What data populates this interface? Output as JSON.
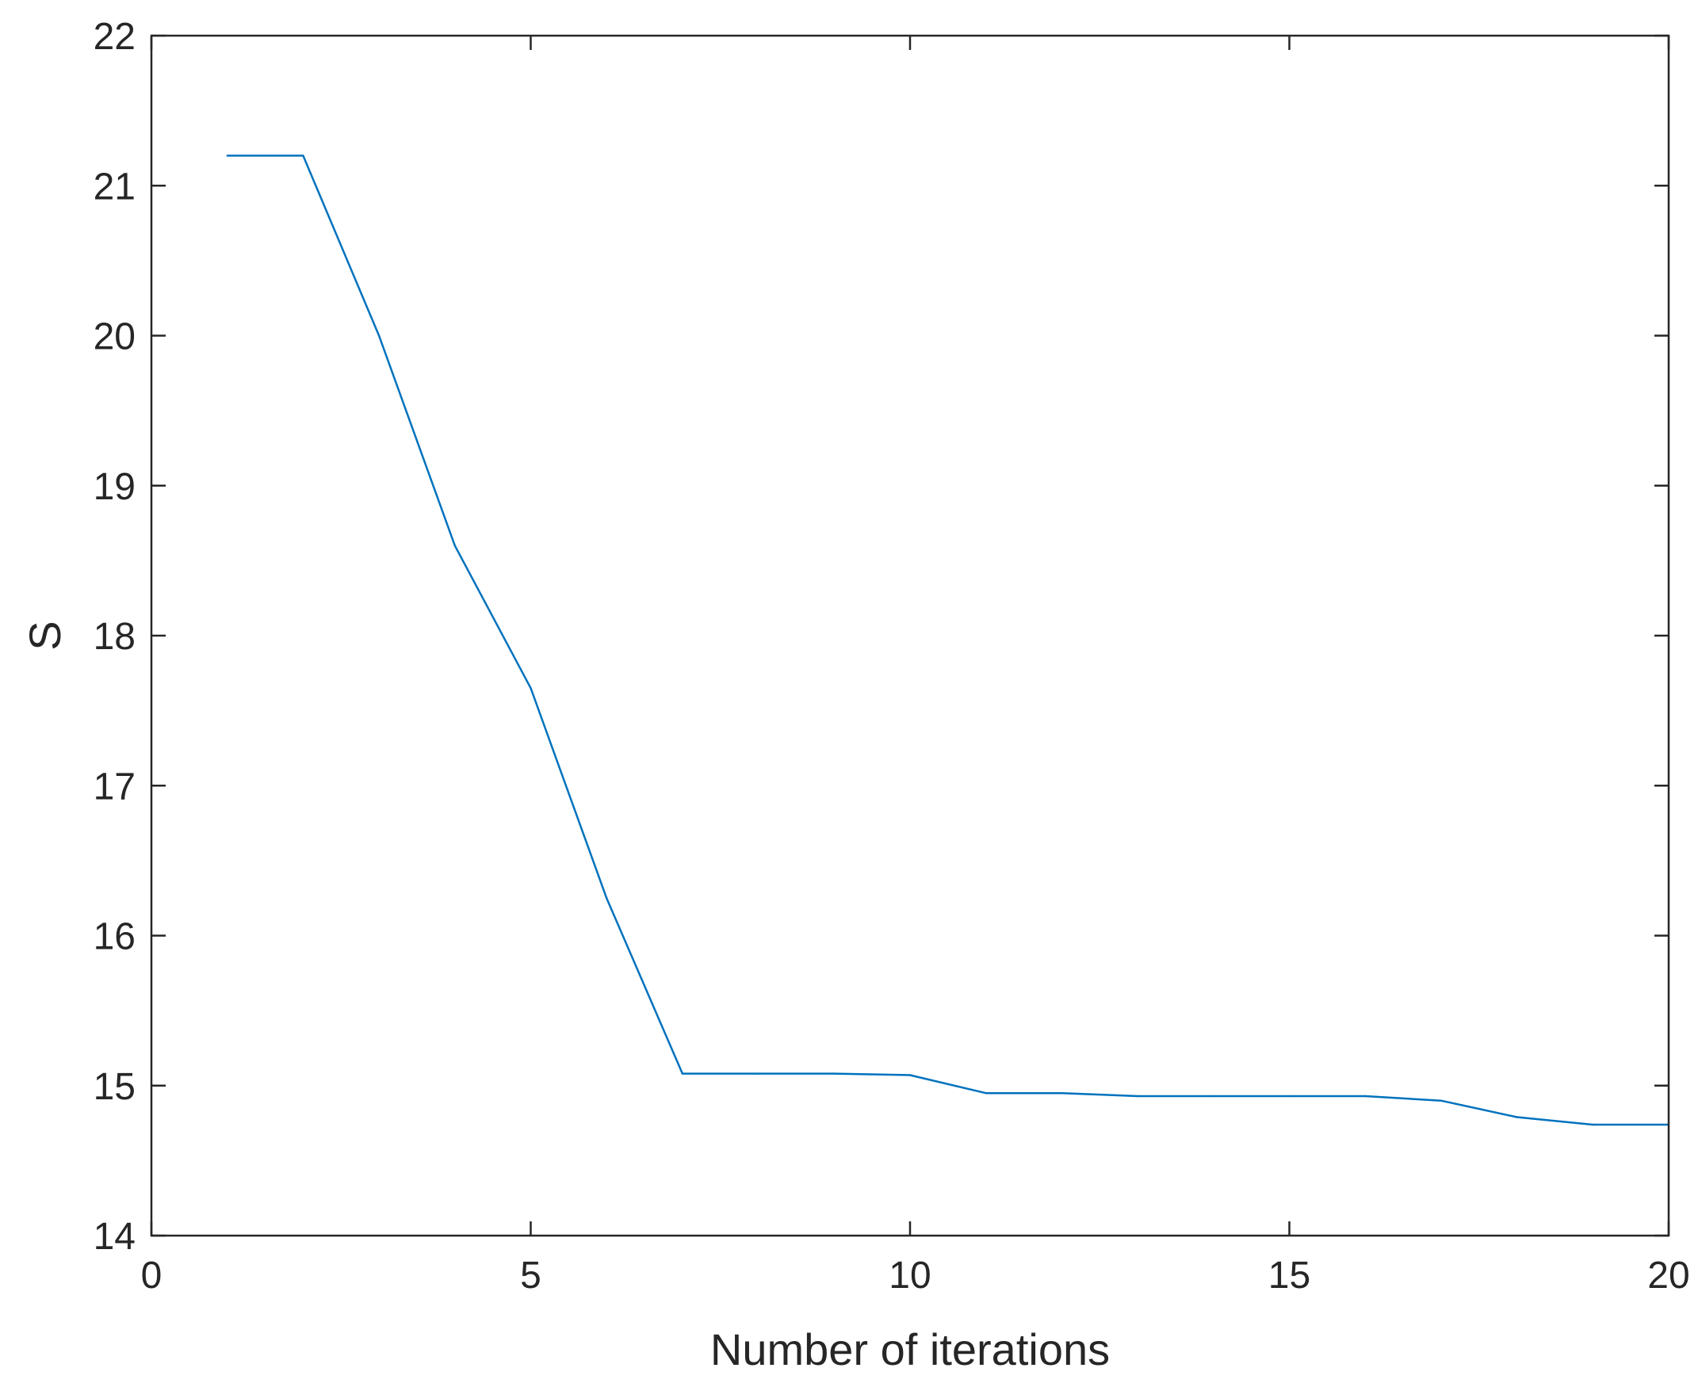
{
  "chart_data": {
    "type": "line",
    "xlabel": "Number of iterations",
    "ylabel": "S",
    "xlim": [
      0,
      20
    ],
    "ylim": [
      14,
      22
    ],
    "xticks": [
      0,
      5,
      10,
      15,
      20
    ],
    "yticks": [
      14,
      15,
      16,
      17,
      18,
      19,
      20,
      21,
      22
    ],
    "grid": false,
    "box": true,
    "series": [
      {
        "color": "#0072BD",
        "x": [
          1,
          2,
          3,
          4,
          5,
          6,
          7,
          8,
          9,
          10,
          11,
          12,
          13,
          14,
          15,
          16,
          17,
          18,
          19,
          20
        ],
        "y": [
          21.2,
          21.2,
          20.0,
          18.6,
          17.65,
          16.25,
          15.08,
          15.08,
          15.08,
          15.07,
          14.95,
          14.95,
          14.93,
          14.93,
          14.93,
          14.93,
          14.9,
          14.79,
          14.74,
          14.74
        ]
      }
    ]
  }
}
